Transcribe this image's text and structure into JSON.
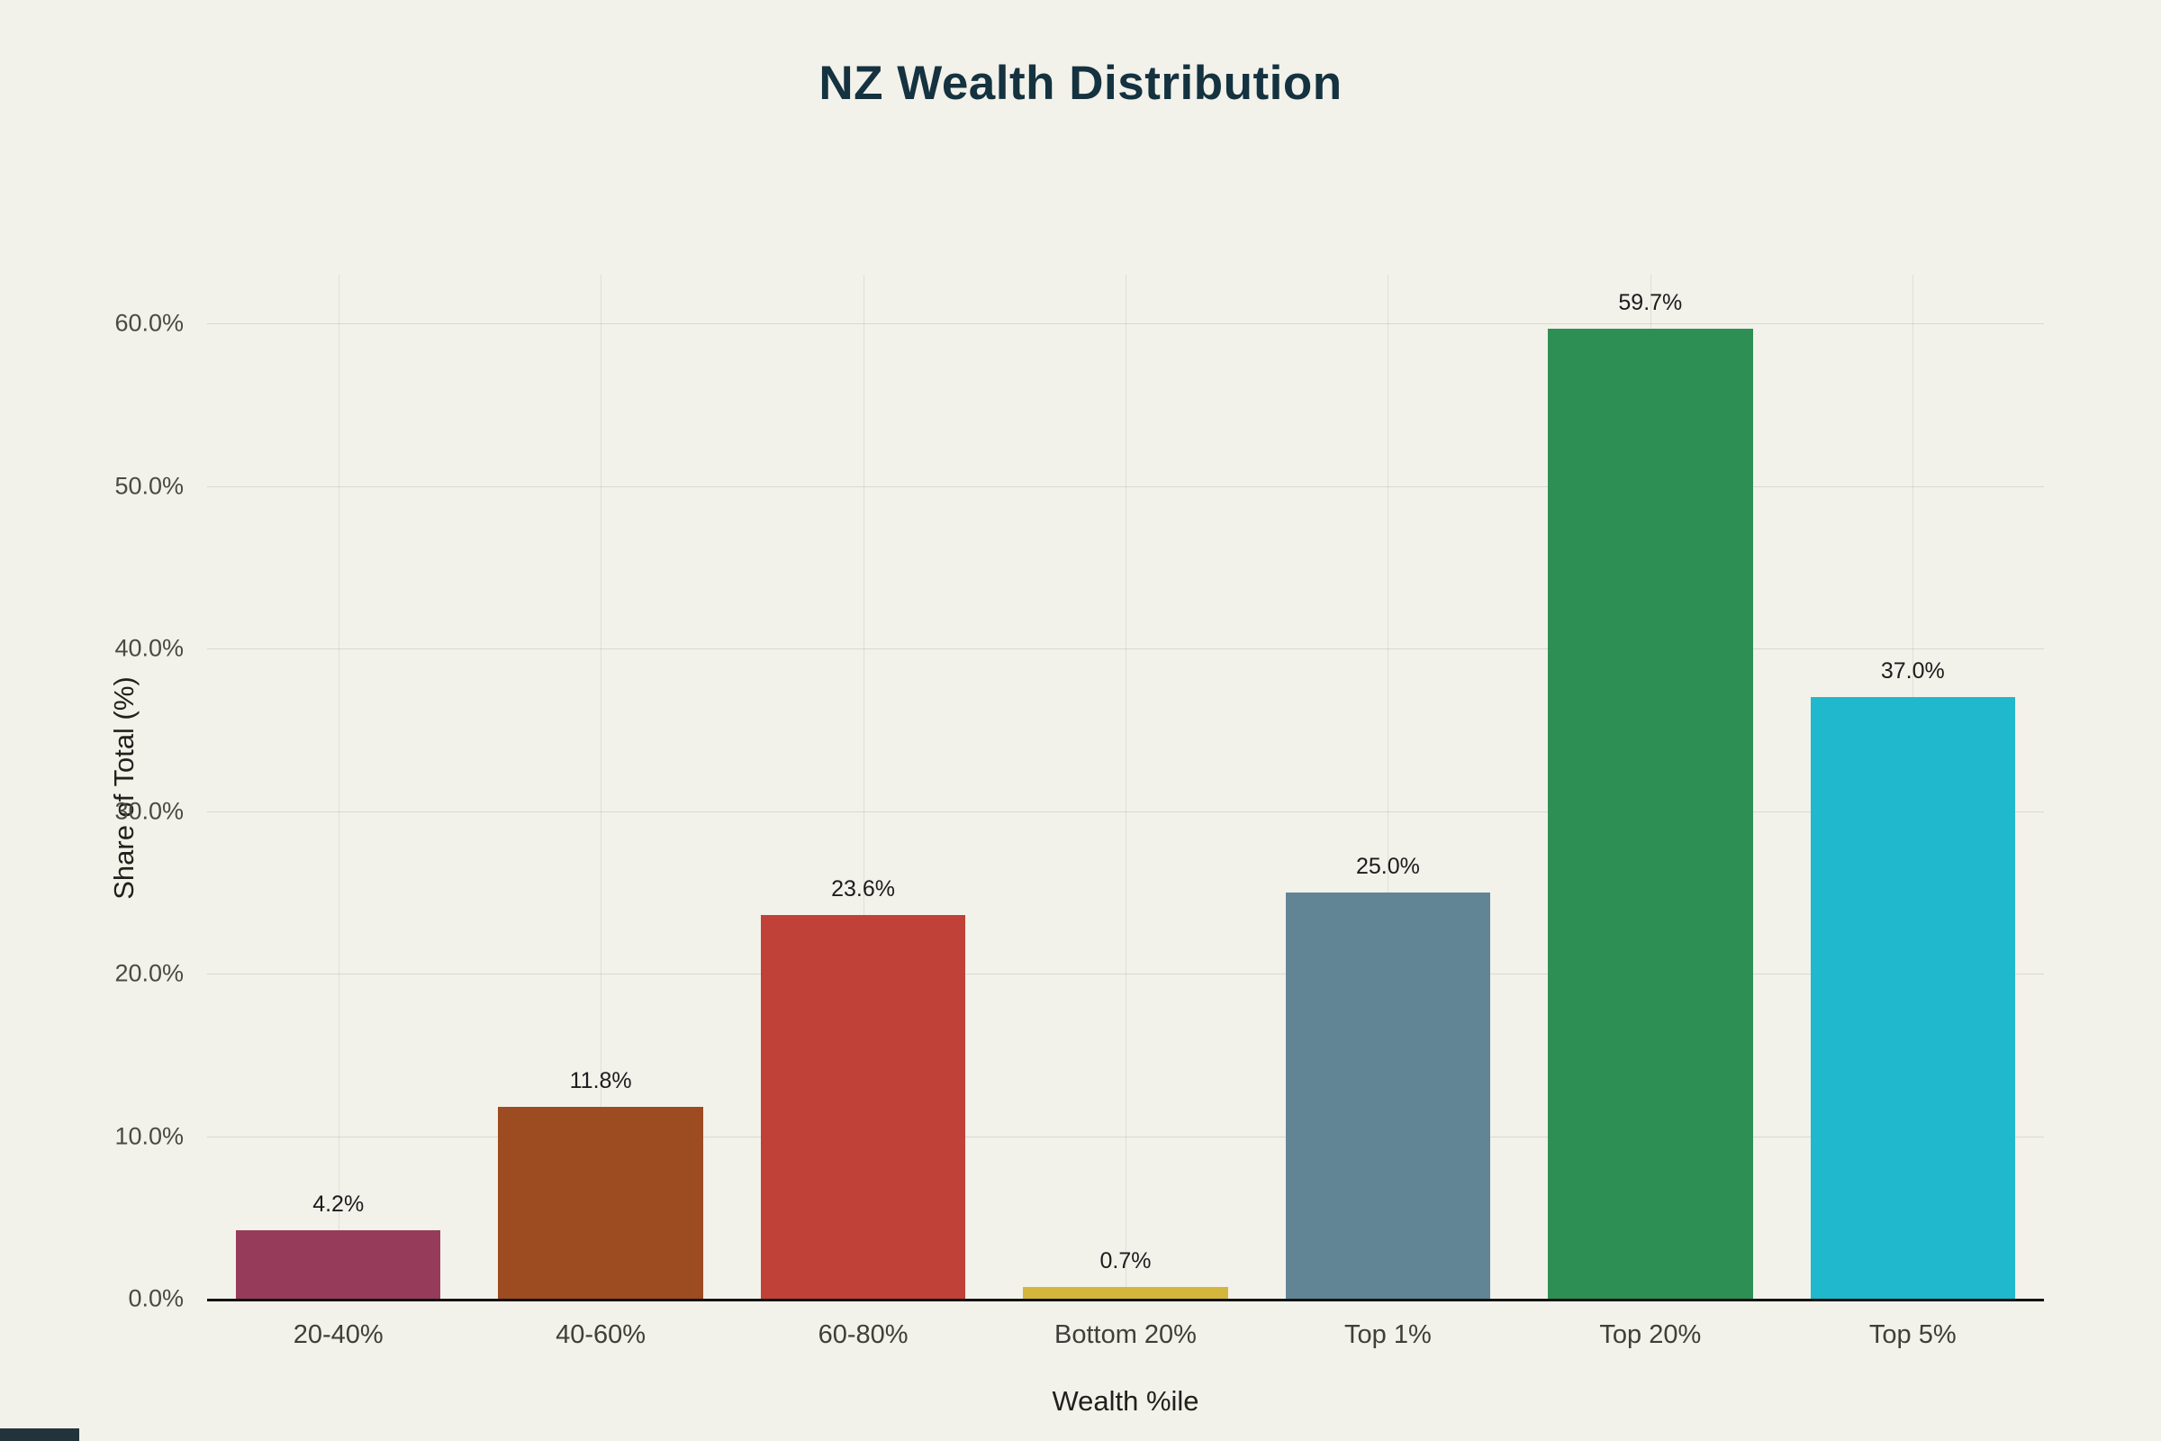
{
  "page": {
    "background_color": "#f2f1ea",
    "title_color": "#14323f",
    "axis_line_color": "#141414"
  },
  "chart_data": {
    "type": "bar",
    "title": "NZ Wealth Distribution",
    "xlabel": "Wealth %ile",
    "ylabel": "Share of Total (%)",
    "categories": [
      "20-40%",
      "40-60%",
      "60-80%",
      "Bottom 20%",
      "Top 1%",
      "Top 20%",
      "Top 5%"
    ],
    "values": [
      4.2,
      11.8,
      23.6,
      0.7,
      25.0,
      59.7,
      37.0
    ],
    "value_labels": [
      "4.2%",
      "11.8%",
      "23.6%",
      "0.7%",
      "25.0%",
      "59.7%",
      "37.0%"
    ],
    "bar_colors": [
      "#963c5a",
      "#9d4b20",
      "#c04138",
      "#d4b63d",
      "#618595",
      "#2e8f55",
      "#1fb8cd"
    ],
    "ylim": [
      0,
      63
    ],
    "yticks": [
      0,
      10,
      20,
      30,
      40,
      50,
      60
    ],
    "ytick_labels": [
      "0.0%",
      "10.0%",
      "20.0%",
      "30.0%",
      "40.0%",
      "50.0%",
      "60.0%"
    ],
    "grid": true,
    "legend": "none"
  }
}
